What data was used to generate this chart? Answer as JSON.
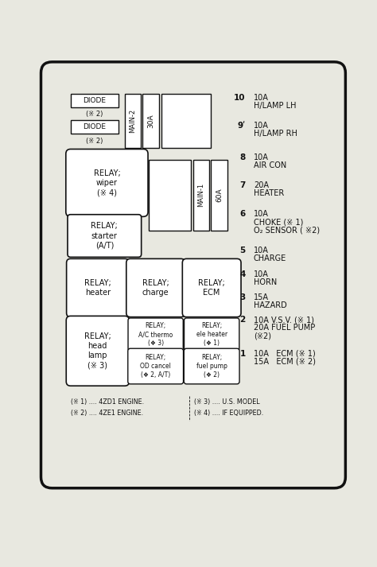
{
  "bg_color": "#e8e8e0",
  "box_color": "#ffffff",
  "box_border": "#111111",
  "text_color": "#111111",
  "fig_width": 4.74,
  "fig_height": 7.13,
  "footnote_line1_left": "(※ 1) .... 4ZD1 ENGINE.",
  "footnote_line1_right": "(※ 3) .... U.S. MODEL",
  "footnote_line2_left": "(※ 2) .... 4ZE1 ENGINE.",
  "footnote_line2_right": "(※ 4) .... IF EQUIPPED.",
  "fuse_entries": [
    {
      "num": "10",
      "line1": "10A",
      "line2": "H/LAMP LH",
      "line3": ""
    },
    {
      "num": "9ʹ",
      "line1": "10A",
      "line2": "H/LAMP RH",
      "line3": ""
    },
    {
      "num": "8",
      "line1": "10A",
      "line2": "AIR CON",
      "line3": ""
    },
    {
      "num": "7",
      "line1": "20A",
      "line2": "HEATER",
      "line3": ""
    },
    {
      "num": "6",
      "line1": "10A",
      "line2": "CHOKE (※ 1)",
      "line3": "O₂ SENSOR ( ※2)"
    },
    {
      "num": "5",
      "line1": "10A",
      "line2": "CHARGE",
      "line3": ""
    },
    {
      "num": "4",
      "line1": "10A",
      "line2": "HORN",
      "line3": ""
    },
    {
      "num": "3",
      "line1": "15A",
      "line2": "HAZARD",
      "line3": ""
    },
    {
      "num": "2",
      "line1": "10A V.S.V. (※ 1)",
      "line2": "20A FUEL PUMP",
      "line3": "(※2)"
    },
    {
      "num": "1",
      "line1": "10A   ECM (※ 1)",
      "line2": "15A   ECM (※ 2)",
      "line3": ""
    }
  ]
}
